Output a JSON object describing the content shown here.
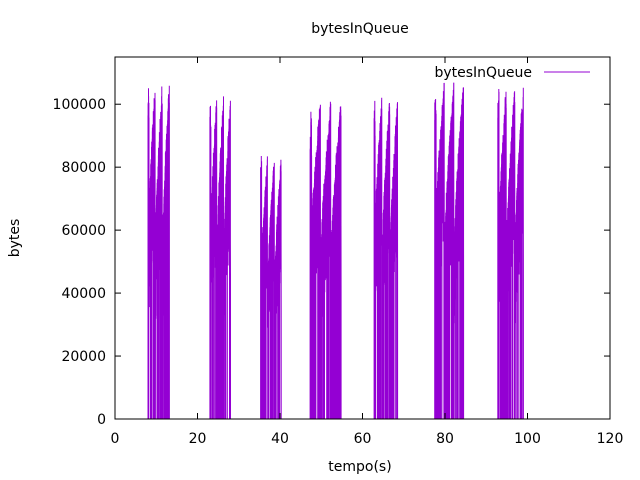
{
  "chart_data": {
    "type": "line",
    "title": "bytesInQueue",
    "xlabel": "tempo(s)",
    "ylabel": "bytes",
    "xlim": [
      0,
      120
    ],
    "ylim": [
      0,
      115000
    ],
    "xticks": [
      0,
      20,
      40,
      60,
      80,
      100,
      120
    ],
    "yticks": [
      0,
      20000,
      40000,
      60000,
      80000,
      100000
    ],
    "xtick_labels": [
      "0",
      "20",
      "40",
      "60",
      "80",
      "100",
      "120"
    ],
    "ytick_labels": [
      "0",
      "20000",
      "40000",
      "60000",
      "80000",
      "100000"
    ],
    "grid": false,
    "legend": {
      "position": "top-right",
      "entries": [
        "bytesInQueue"
      ]
    },
    "series": [
      {
        "name": "bytesInQueue",
        "color": "#9400d3",
        "bursts": [
          {
            "t_start": 8.0,
            "t_end": 13.2,
            "peak": 108000
          },
          {
            "t_start": 23.0,
            "t_end": 28.0,
            "peak": 104000
          },
          {
            "t_start": 35.3,
            "t_end": 40.3,
            "peak": 84000
          },
          {
            "t_start": 47.3,
            "t_end": 54.8,
            "peak": 102000
          },
          {
            "t_start": 62.8,
            "t_end": 68.5,
            "peak": 103000
          },
          {
            "t_start": 77.5,
            "t_end": 84.5,
            "peak": 108000
          },
          {
            "t_start": 92.8,
            "t_end": 99.0,
            "peak": 107000
          }
        ]
      }
    ]
  }
}
